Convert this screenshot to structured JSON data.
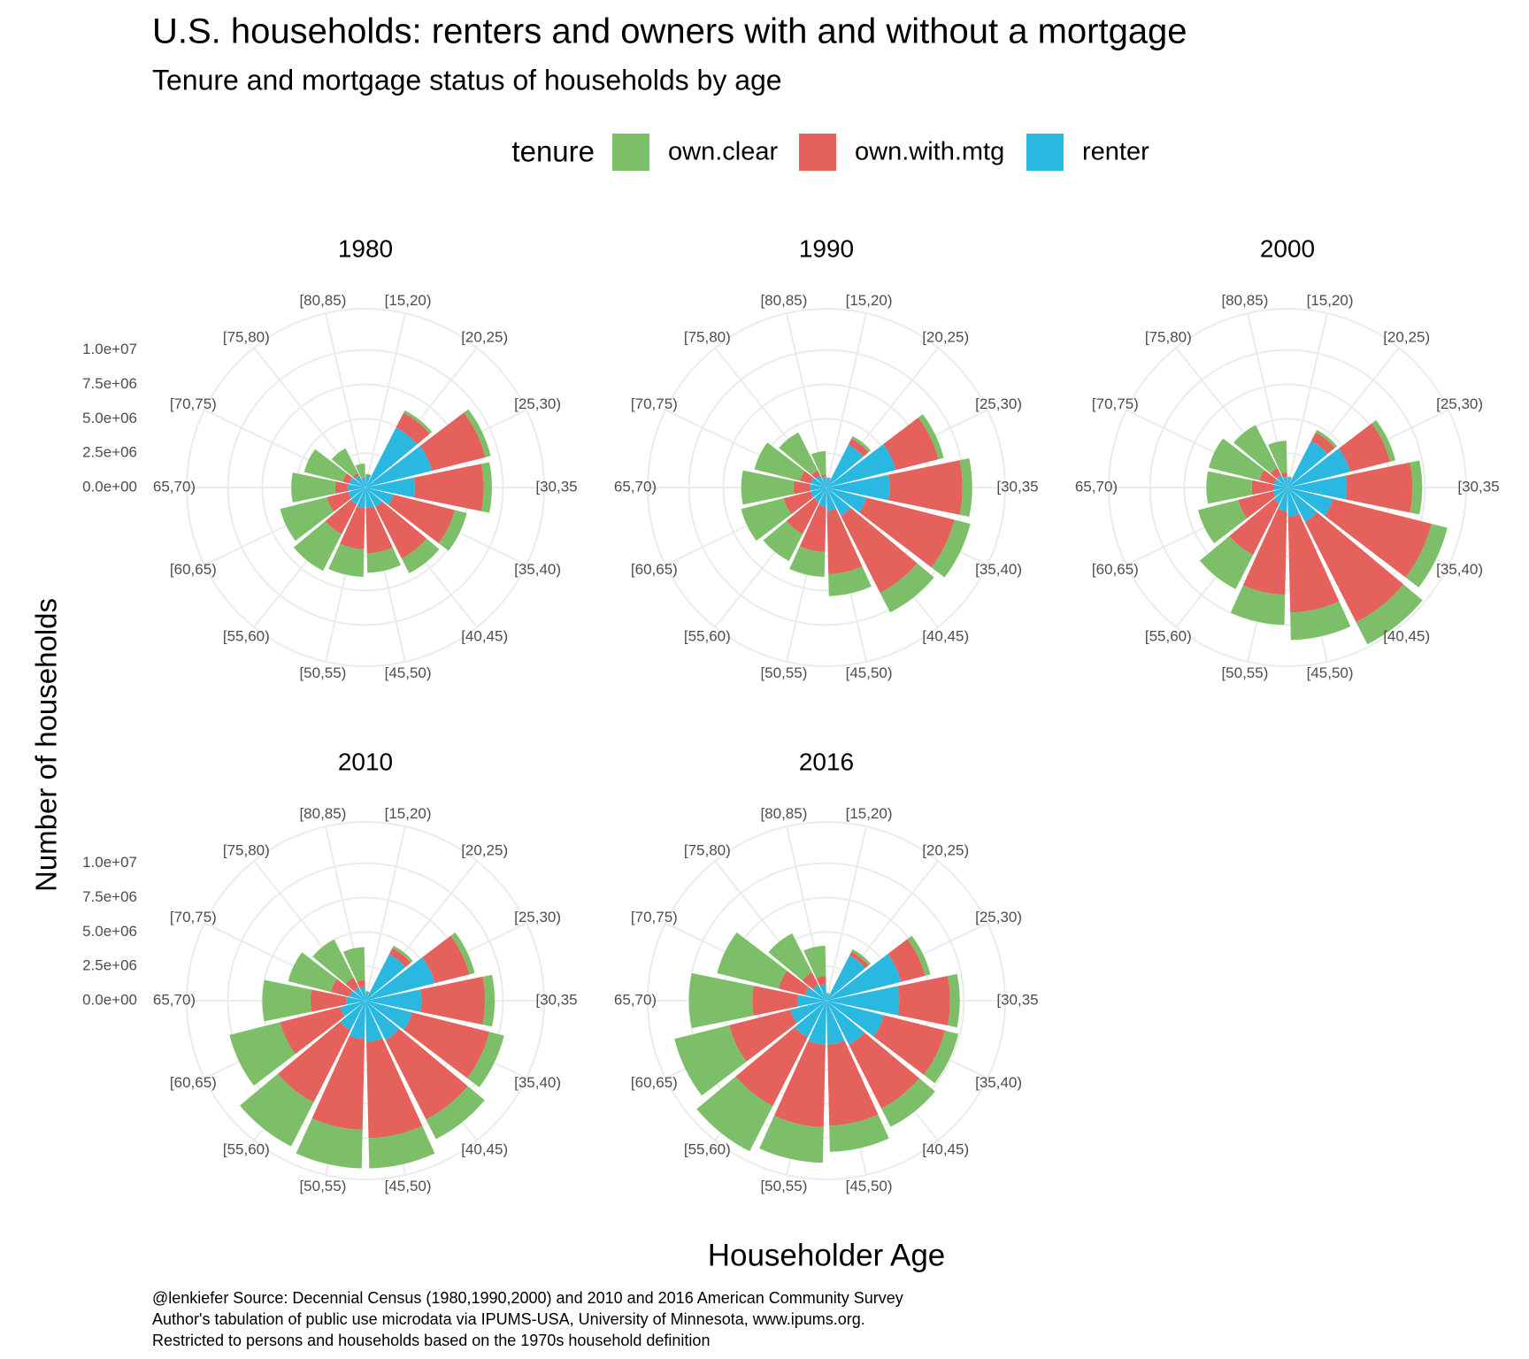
{
  "title": "U.S. households: renters and owners with and without a mortgage",
  "subtitle": "Tenure and mortgage status of households by age",
  "legend_title": "tenure",
  "x_label": "Householder Age",
  "y_label": "Number of households",
  "caption": [
    "@lenkiefer Source: Decennial Census (1980,1990,2000) and 2010 and 2016 American Community Survey",
    "Author's tabulation of public use microdata via IPUMS-USA, University of Minnesota, www.ipums.org.",
    "Restricted to persons and households based on the 1970s household definition"
  ],
  "chart_data": [
    {
      "type": "polar-bar",
      "title": "1980",
      "stacked": true,
      "grid": true,
      "categories": [
        "[15,20)",
        "[20,25)",
        "[25,30)",
        "[30,35",
        "[35,40)",
        "[40,45)",
        "[45,50)",
        "[50,55)",
        "[55,60)",
        "[60,65)",
        "65,70)",
        "[70,75)",
        "[75,80)",
        "[80,85)"
      ],
      "rlim": [
        0,
        13000000
      ],
      "rticks": [
        {
          "value": 0,
          "label": "0.0e+00"
        },
        {
          "value": 2500000,
          "label": "2.5e+06"
        },
        {
          "value": 5000000,
          "label": "5.0e+06"
        },
        {
          "value": 7500000,
          "label": "7.5e+06"
        },
        {
          "value": 10000000,
          "label": "1.0e+07"
        }
      ],
      "series": [
        {
          "name": "own.clear",
          "color": "#7dbf69",
          "values": [
            50000,
            200000,
            400000,
            600000,
            900000,
            1200000,
            1400000,
            2000000,
            3000000,
            3500000,
            3200000,
            2900000,
            2000000,
            1000000
          ]
        },
        {
          "name": "own.with.mtg",
          "color": "#e5615b",
          "values": [
            50000,
            1200000,
            4000000,
            5000000,
            4600000,
            4200000,
            3300000,
            3000000,
            2400000,
            1600000,
            900000,
            500000,
            200000,
            50000
          ]
        },
        {
          "name": "renter",
          "color": "#2ab8e0",
          "values": [
            900000,
            4900000,
            5000000,
            3600000,
            2100000,
            1600000,
            1500000,
            1500000,
            1400000,
            1300000,
            1300000,
            1200000,
            1000000,
            700000
          ]
        }
      ]
    },
    {
      "type": "polar-bar",
      "title": "1990",
      "stacked": true,
      "grid": true,
      "categories": [
        "[15,20)",
        "[20,25)",
        "[25,30)",
        "[30,35",
        "[35,40)",
        "[40,45)",
        "[45,50)",
        "[50,55)",
        "[55,60)",
        "[60,65)",
        "65,70)",
        "[70,75)",
        "[75,80)",
        "[80,85)"
      ],
      "rlim": [
        0,
        13000000
      ],
      "rticks": [
        {
          "value": 0,
          "label": "0.0e+00"
        },
        {
          "value": 2500000,
          "label": "2.5e+06"
        },
        {
          "value": 5000000,
          "label": "5.0e+06"
        },
        {
          "value": 7500000,
          "label": "7.5e+06"
        },
        {
          "value": 10000000,
          "label": "1.0e+07"
        }
      ],
      "series": [
        {
          "name": "own.clear",
          "color": "#7dbf69",
          "values": [
            30000,
            200000,
            400000,
            700000,
            1200000,
            1600000,
            1600000,
            1800000,
            2200000,
            3200000,
            3800000,
            3400000,
            3100000,
            1700000
          ]
        },
        {
          "name": "own.with.mtg",
          "color": "#e5615b",
          "values": [
            30000,
            500000,
            3200000,
            5300000,
            6600000,
            6300000,
            4600000,
            3300000,
            2600000,
            2000000,
            1200000,
            800000,
            400000,
            150000
          ]
        },
        {
          "name": "renter",
          "color": "#2ab8e0",
          "values": [
            700000,
            3500000,
            5200000,
            4600000,
            3000000,
            2300000,
            1700000,
            1400000,
            1200000,
            1200000,
            1200000,
            1200000,
            1000000,
            800000
          ]
        }
      ]
    },
    {
      "type": "polar-bar",
      "title": "2000",
      "stacked": true,
      "grid": true,
      "categories": [
        "[15,20)",
        "[20,25)",
        "[25,30)",
        "[30,35",
        "[35,40)",
        "[40,45)",
        "[45,50)",
        "[50,55)",
        "[55,60)",
        "[60,65)",
        "65,70)",
        "[70,75)",
        "[75,80)",
        "[80,85)"
      ],
      "rlim": [
        0,
        13000000
      ],
      "rticks": [
        {
          "value": 0,
          "label": "0.0e+00"
        },
        {
          "value": 2500000,
          "label": "2.5e+06"
        },
        {
          "value": 5000000,
          "label": "5.0e+06"
        },
        {
          "value": 7500000,
          "label": "7.5e+06"
        },
        {
          "value": 10000000,
          "label": "1.0e+07"
        }
      ],
      "series": [
        {
          "name": "own.clear",
          "color": "#7dbf69",
          "values": [
            50000,
            200000,
            400000,
            700000,
            1200000,
            1800000,
            2000000,
            2200000,
            2800000,
            3000000,
            3300000,
            3800000,
            3500000,
            2300000
          ]
        },
        {
          "name": "own.with.mtg",
          "color": "#e5615b",
          "values": [
            50000,
            700000,
            3000000,
            4800000,
            7400000,
            8200000,
            7000000,
            6100000,
            4200000,
            2600000,
            1600000,
            1100000,
            600000,
            300000
          ]
        },
        {
          "name": "renter",
          "color": "#2ab8e0",
          "values": [
            700000,
            3800000,
            4700000,
            4300000,
            3400000,
            2800000,
            2100000,
            1700000,
            1300000,
            1100000,
            1000000,
            1000000,
            1000000,
            800000
          ]
        }
      ]
    },
    {
      "type": "polar-bar",
      "title": "2010",
      "stacked": true,
      "grid": true,
      "categories": [
        "[15,20)",
        "[20,25)",
        "[25,30)",
        "[30,35",
        "[35,40)",
        "[40,45)",
        "[45,50)",
        "[50,55)",
        "[55,60)",
        "[60,65)",
        "65,70)",
        "[70,75)",
        "[75,80)",
        "[80,85)"
      ],
      "rlim": [
        0,
        13000000
      ],
      "rticks": [
        {
          "value": 0,
          "label": "0.0e+00"
        },
        {
          "value": 2500000,
          "label": "2.5e+06"
        },
        {
          "value": 5000000,
          "label": "5.0e+06"
        },
        {
          "value": 7500000,
          "label": "7.5e+06"
        },
        {
          "value": 10000000,
          "label": "1.0e+07"
        }
      ],
      "series": [
        {
          "name": "own.clear",
          "color": "#7dbf69",
          "values": [
            50000,
            200000,
            400000,
            700000,
            1100000,
            1600000,
            2200000,
            2800000,
            3600000,
            3800000,
            3500000,
            3200000,
            3100000,
            2400000
          ]
        },
        {
          "name": "own.with.mtg",
          "color": "#e5615b",
          "values": [
            50000,
            500000,
            2600000,
            4600000,
            5800000,
            6500000,
            7000000,
            6600000,
            5900000,
            4500000,
            2600000,
            1400000,
            800000,
            500000
          ]
        },
        {
          "name": "renter",
          "color": "#2ab8e0",
          "values": [
            600000,
            3800000,
            5200000,
            4100000,
            3500000,
            3200000,
            3000000,
            2800000,
            2400000,
            1900000,
            1400000,
            1200000,
            1100000,
            1000000
          ]
        }
      ]
    },
    {
      "type": "polar-bar",
      "title": "2016",
      "stacked": true,
      "grid": true,
      "categories": [
        "[15,20)",
        "[20,25)",
        "[25,30)",
        "[30,35",
        "[35,40)",
        "[40,45)",
        "[45,50)",
        "[50,55)",
        "[55,60)",
        "[60,65)",
        "65,70)",
        "[70,75)",
        "[75,80)",
        "[80,85)"
      ],
      "rlim": [
        0,
        13000000
      ],
      "rticks": [
        {
          "value": 0,
          "label": "0.0e+00"
        },
        {
          "value": 2500000,
          "label": "2.5e+06"
        },
        {
          "value": 5000000,
          "label": "5.0e+06"
        },
        {
          "value": 7500000,
          "label": "7.5e+06"
        },
        {
          "value": 10000000,
          "label": "1.0e+07"
        }
      ],
      "series": [
        {
          "name": "own.clear",
          "color": "#7dbf69",
          "values": [
            50000,
            200000,
            400000,
            700000,
            1000000,
            1500000,
            1900000,
            2600000,
            3700000,
            4100000,
            4600000,
            4600000,
            3200000,
            2200000
          ]
        },
        {
          "name": "own.with.mtg",
          "color": "#e5615b",
          "values": [
            30000,
            300000,
            1800000,
            3700000,
            4600000,
            5200000,
            5900000,
            6000000,
            5600000,
            4600000,
            3300000,
            2000000,
            1000000,
            600000
          ]
        },
        {
          "name": "renter",
          "color": "#2ab8e0",
          "values": [
            500000,
            3700000,
            5600000,
            5300000,
            4300000,
            3600000,
            3200000,
            3200000,
            3000000,
            2700000,
            2100000,
            1600000,
            1300000,
            1200000
          ]
        }
      ]
    }
  ]
}
